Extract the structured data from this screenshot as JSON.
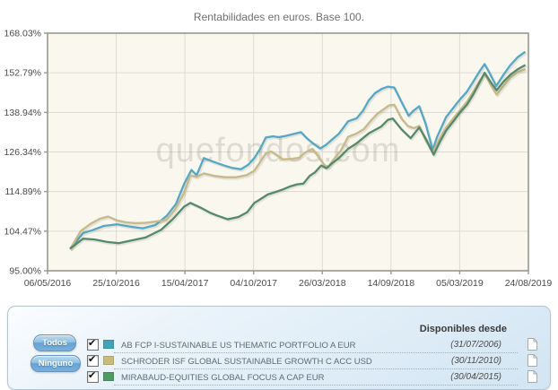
{
  "chart_data": {
    "type": "line",
    "title": "Rentabilidades en euros. Base 100.",
    "watermark": "quefondos.com",
    "y_scale": "log",
    "ylim": [
      95.0,
      168.03
    ],
    "grid": true,
    "plot_bg": "#faf8ee",
    "frame_color": "#98988e",
    "grid_color": "#dbdbd2",
    "y_tick_labels": [
      "168.03%",
      "152.79%",
      "138.94%",
      "126.34%",
      "114.89%",
      "104.47%",
      "95.00%"
    ],
    "y_tick_values": [
      168.03,
      152.79,
      138.94,
      126.34,
      114.89,
      104.47,
      95.0
    ],
    "x_tick_labels": [
      "06/05/2016",
      "25/10/2016",
      "15/04/2017",
      "04/10/2017",
      "26/03/2018",
      "14/09/2018",
      "05/03/2019",
      "24/08/2019"
    ],
    "series": [
      {
        "name": "AB FCP I-SUSTAINABLE US THEMATIC PORTFOLIO A EUR",
        "color": "#55a7c5",
        "swatch_color": "#43a3b5",
        "points": [
          [
            0.048,
            100.3
          ],
          [
            0.074,
            104.0
          ],
          [
            0.093,
            104.7
          ],
          [
            0.117,
            105.8
          ],
          [
            0.145,
            106.2
          ],
          [
            0.172,
            105.6
          ],
          [
            0.198,
            105.2
          ],
          [
            0.224,
            106.0
          ],
          [
            0.248,
            108.4
          ],
          [
            0.267,
            111.5
          ],
          [
            0.284,
            117.0
          ],
          [
            0.299,
            121.0
          ],
          [
            0.31,
            119.5
          ],
          [
            0.325,
            124.5
          ],
          [
            0.347,
            123.3
          ],
          [
            0.365,
            122.4
          ],
          [
            0.384,
            121.6
          ],
          [
            0.402,
            121.2
          ],
          [
            0.417,
            122.5
          ],
          [
            0.43,
            124.5
          ],
          [
            0.443,
            127.5
          ],
          [
            0.454,
            130.8
          ],
          [
            0.469,
            131.2
          ],
          [
            0.48,
            130.9
          ],
          [
            0.495,
            131.3
          ],
          [
            0.514,
            132.0
          ],
          [
            0.527,
            132.5
          ],
          [
            0.54,
            130.5
          ],
          [
            0.554,
            128.8
          ],
          [
            0.567,
            127.4
          ],
          [
            0.579,
            128.5
          ],
          [
            0.592,
            130.2
          ],
          [
            0.606,
            132.0
          ],
          [
            0.625,
            136.0
          ],
          [
            0.643,
            137.0
          ],
          [
            0.656,
            139.5
          ],
          [
            0.668,
            143.0
          ],
          [
            0.681,
            145.5
          ],
          [
            0.695,
            147.0
          ],
          [
            0.708,
            147.8
          ],
          [
            0.721,
            147.5
          ],
          [
            0.736,
            142.5
          ],
          [
            0.751,
            137.8
          ],
          [
            0.76,
            139.4
          ],
          [
            0.773,
            141.0
          ],
          [
            0.786,
            135.3
          ],
          [
            0.801,
            127.0
          ],
          [
            0.81,
            131.0
          ],
          [
            0.829,
            137.4
          ],
          [
            0.844,
            140.5
          ],
          [
            0.857,
            143.2
          ],
          [
            0.872,
            146.0
          ],
          [
            0.885,
            149.5
          ],
          [
            0.899,
            153.5
          ],
          [
            0.909,
            156.0
          ],
          [
            0.92,
            152.5
          ],
          [
            0.933,
            148.0
          ],
          [
            0.948,
            152.0
          ],
          [
            0.962,
            155.5
          ],
          [
            0.977,
            158.5
          ],
          [
            0.992,
            160.5
          ]
        ]
      },
      {
        "name": "SCHRODER ISF GLOBAL SUSTAINABLE GROWTH C ACC USD",
        "color": "#c6b98a",
        "swatch_color": "#c9bb79",
        "points": [
          [
            0.048,
            100.3
          ],
          [
            0.069,
            104.5
          ],
          [
            0.089,
            106.3
          ],
          [
            0.108,
            107.6
          ],
          [
            0.126,
            108.2
          ],
          [
            0.145,
            107.2
          ],
          [
            0.163,
            106.7
          ],
          [
            0.182,
            106.5
          ],
          [
            0.204,
            106.6
          ],
          [
            0.224,
            106.9
          ],
          [
            0.247,
            107.3
          ],
          [
            0.265,
            110.0
          ],
          [
            0.284,
            114.5
          ],
          [
            0.297,
            119.4
          ],
          [
            0.31,
            119.0
          ],
          [
            0.325,
            120.0
          ],
          [
            0.347,
            119.3
          ],
          [
            0.369,
            118.9
          ],
          [
            0.391,
            118.9
          ],
          [
            0.414,
            119.5
          ],
          [
            0.43,
            120.8
          ],
          [
            0.443,
            123.5
          ],
          [
            0.454,
            125.9
          ],
          [
            0.465,
            126.5
          ],
          [
            0.478,
            125.3
          ],
          [
            0.49,
            124.1
          ],
          [
            0.508,
            124.3
          ],
          [
            0.523,
            124.6
          ],
          [
            0.536,
            126.2
          ],
          [
            0.551,
            127.3
          ],
          [
            0.564,
            124.8
          ],
          [
            0.575,
            122.5
          ],
          [
            0.584,
            121.9
          ],
          [
            0.597,
            124.5
          ],
          [
            0.61,
            126.8
          ],
          [
            0.625,
            131.0
          ],
          [
            0.643,
            132.1
          ],
          [
            0.658,
            133.5
          ],
          [
            0.671,
            136.0
          ],
          [
            0.686,
            138.5
          ],
          [
            0.699,
            140.0
          ],
          [
            0.71,
            141.3
          ],
          [
            0.721,
            141.5
          ],
          [
            0.736,
            136.9
          ],
          [
            0.749,
            134.5
          ],
          [
            0.762,
            133.8
          ],
          [
            0.773,
            134.5
          ],
          [
            0.786,
            130.0
          ],
          [
            0.801,
            126.2
          ],
          [
            0.814,
            130.0
          ],
          [
            0.829,
            134.0
          ],
          [
            0.844,
            137.0
          ],
          [
            0.857,
            139.5
          ],
          [
            0.872,
            142.5
          ],
          [
            0.885,
            146.0
          ],
          [
            0.899,
            150.0
          ],
          [
            0.909,
            152.5
          ],
          [
            0.921,
            148.5
          ],
          [
            0.934,
            145.0
          ],
          [
            0.948,
            148.0
          ],
          [
            0.962,
            151.0
          ],
          [
            0.977,
            153.0
          ],
          [
            0.992,
            154.0
          ]
        ]
      },
      {
        "name": "MIRABAUD-EQUITIES GLOBAL FOCUS A CAP EUR",
        "color": "#55896b",
        "swatch_color": "#4d9a63",
        "points": [
          [
            0.048,
            100.3
          ],
          [
            0.074,
            102.6
          ],
          [
            0.098,
            102.4
          ],
          [
            0.124,
            101.8
          ],
          [
            0.148,
            101.5
          ],
          [
            0.172,
            102.1
          ],
          [
            0.204,
            102.9
          ],
          [
            0.236,
            104.8
          ],
          [
            0.26,
            107.5
          ],
          [
            0.284,
            110.8
          ],
          [
            0.297,
            111.8
          ],
          [
            0.319,
            110.5
          ],
          [
            0.338,
            109.2
          ],
          [
            0.352,
            108.5
          ],
          [
            0.375,
            107.5
          ],
          [
            0.397,
            108.1
          ],
          [
            0.415,
            109.3
          ],
          [
            0.43,
            111.8
          ],
          [
            0.445,
            113.0
          ],
          [
            0.458,
            114.1
          ],
          [
            0.477,
            114.9
          ],
          [
            0.49,
            115.5
          ],
          [
            0.504,
            116.3
          ],
          [
            0.519,
            116.9
          ],
          [
            0.532,
            117.1
          ],
          [
            0.545,
            119.3
          ],
          [
            0.556,
            120.3
          ],
          [
            0.569,
            122.3
          ],
          [
            0.58,
            121.5
          ],
          [
            0.592,
            123.0
          ],
          [
            0.606,
            124.5
          ],
          [
            0.625,
            127.3
          ],
          [
            0.643,
            129.0
          ],
          [
            0.668,
            132.1
          ],
          [
            0.694,
            134.3
          ],
          [
            0.708,
            136.5
          ],
          [
            0.718,
            136.9
          ],
          [
            0.736,
            133.4
          ],
          [
            0.755,
            130.6
          ],
          [
            0.773,
            134.0
          ],
          [
            0.788,
            130.0
          ],
          [
            0.803,
            125.5
          ],
          [
            0.816,
            129.5
          ],
          [
            0.829,
            133.0
          ],
          [
            0.844,
            136.0
          ],
          [
            0.857,
            138.8
          ],
          [
            0.872,
            141.5
          ],
          [
            0.885,
            145.0
          ],
          [
            0.899,
            149.5
          ],
          [
            0.909,
            152.8
          ],
          [
            0.921,
            149.5
          ],
          [
            0.934,
            146.5
          ],
          [
            0.948,
            149.5
          ],
          [
            0.962,
            152.0
          ],
          [
            0.977,
            154.0
          ],
          [
            0.992,
            155.5
          ]
        ]
      }
    ]
  },
  "legend": {
    "header": "Disponibles desde",
    "buttons": [
      {
        "label": "Todos"
      },
      {
        "label": "Ninguno"
      }
    ],
    "rows": [
      {
        "available_since": "(31/07/2006)",
        "checked": true
      },
      {
        "available_since": "(30/11/2010)",
        "checked": true
      },
      {
        "available_since": "(30/04/2015)",
        "checked": true
      }
    ]
  }
}
